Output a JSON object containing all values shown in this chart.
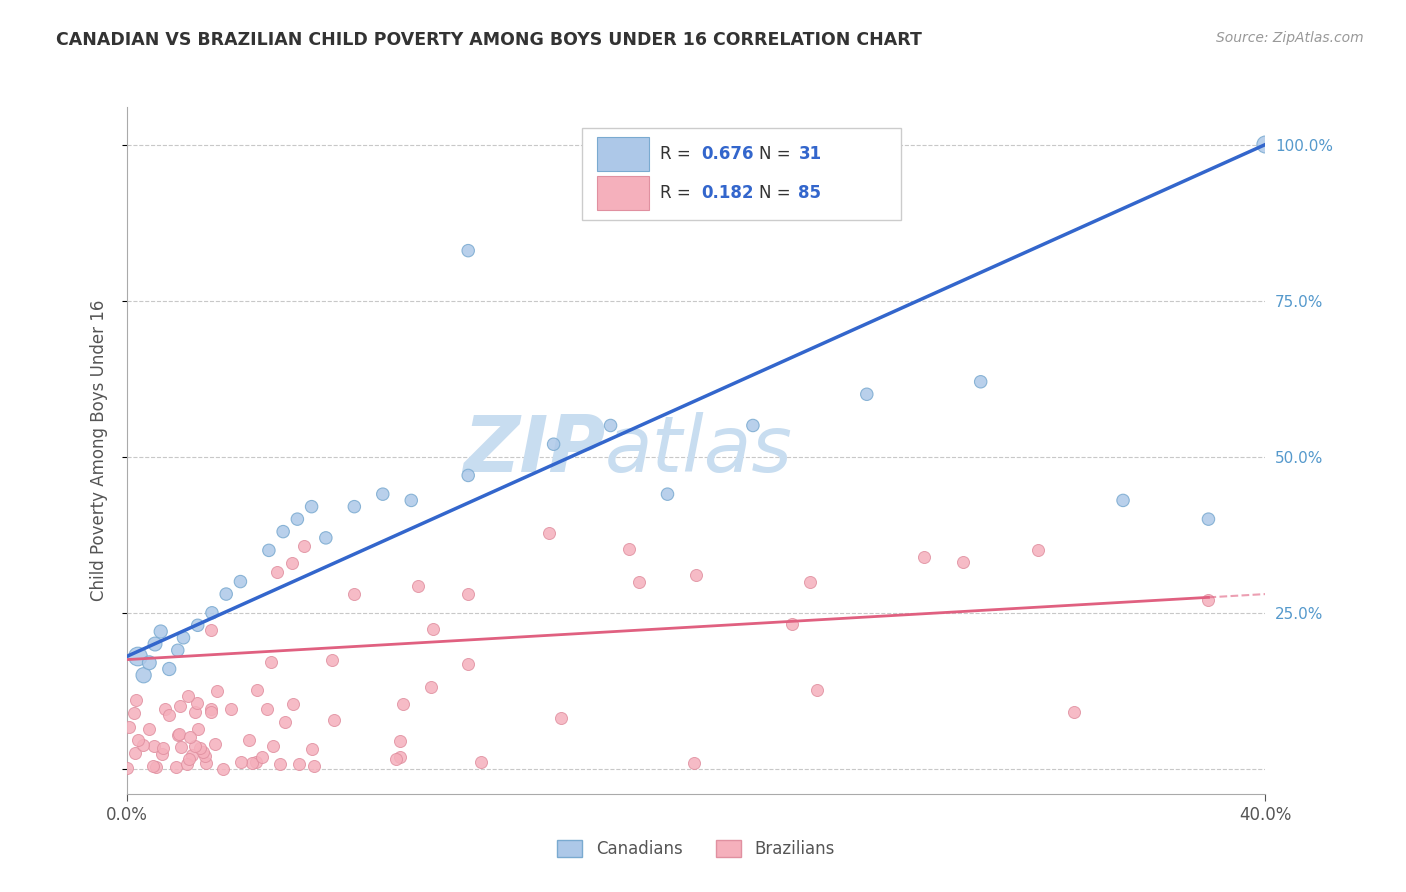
{
  "title": "CANADIAN VS BRAZILIAN CHILD POVERTY AMONG BOYS UNDER 16 CORRELATION CHART",
  "source": "Source: ZipAtlas.com",
  "ylabel": "Child Poverty Among Boys Under 16",
  "legend_entries": [
    {
      "label": "Canadians",
      "color": "#adc8e8",
      "R": 0.676,
      "N": 31
    },
    {
      "label": "Brazilians",
      "color": "#f5b0bc",
      "R": 0.182,
      "N": 85
    }
  ],
  "xlim": [
    0.0,
    0.4
  ],
  "ylim": [
    -0.04,
    1.06
  ],
  "yticks_right": [
    0.0,
    0.25,
    0.5,
    0.75,
    1.0
  ],
  "ytick_labels_right": [
    "",
    "25.0%",
    "50.0%",
    "75.0%",
    "100.0%"
  ],
  "background_color": "#ffffff",
  "watermark_zip": "ZIP",
  "watermark_atlas": "atlas",
  "watermark_color": "#c8ddf0",
  "grid_color": "#c8c8c8",
  "canadian_line_color": "#3366cc",
  "brazilian_line_color": "#e06080",
  "canadian_scatter_color": "#adc8e8",
  "brazilian_scatter_color": "#f5b0bc",
  "canadian_scatter_edge": "#7aaad0",
  "brazilian_scatter_edge": "#e090a0",
  "seed": 7,
  "canadian_x": [
    0.004,
    0.006,
    0.008,
    0.01,
    0.012,
    0.015,
    0.018,
    0.02,
    0.025,
    0.03,
    0.035,
    0.04,
    0.05,
    0.055,
    0.06,
    0.065,
    0.07,
    0.08,
    0.09,
    0.1,
    0.12,
    0.15,
    0.17,
    0.19,
    0.22,
    0.26,
    0.3,
    0.35,
    0.38,
    0.4,
    0.12
  ],
  "canadian_y": [
    0.18,
    0.15,
    0.17,
    0.2,
    0.22,
    0.16,
    0.19,
    0.21,
    0.23,
    0.25,
    0.28,
    0.3,
    0.35,
    0.38,
    0.4,
    0.42,
    0.37,
    0.42,
    0.44,
    0.43,
    0.47,
    0.52,
    0.55,
    0.44,
    0.55,
    0.6,
    0.62,
    0.43,
    0.4,
    1.0,
    0.83
  ],
  "canadian_sizes": [
    180,
    120,
    100,
    100,
    90,
    90,
    80,
    80,
    80,
    80,
    80,
    80,
    80,
    80,
    80,
    80,
    80,
    80,
    80,
    80,
    80,
    80,
    80,
    80,
    80,
    80,
    80,
    80,
    80,
    150,
    80
  ]
}
